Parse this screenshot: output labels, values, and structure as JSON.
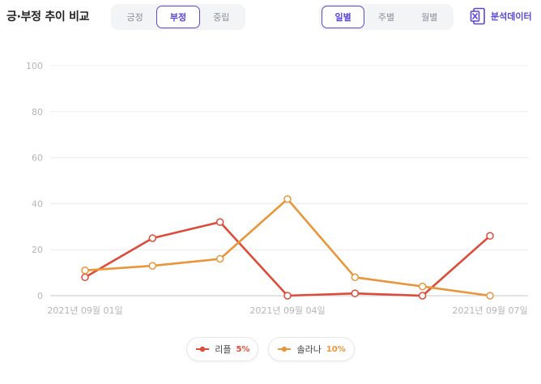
{
  "header": {
    "title": "긍·부정 추이 비교",
    "export_label": "분석데이터"
  },
  "sentiment_tabs": [
    {
      "label": "긍정",
      "active": false
    },
    {
      "label": "부정",
      "active": true
    },
    {
      "label": "중립",
      "active": false
    }
  ],
  "period_tabs": [
    {
      "label": "일별",
      "active": true
    },
    {
      "label": "주별",
      "active": false
    },
    {
      "label": "월별",
      "active": false
    }
  ],
  "icons": {
    "export": "excel-export-icon"
  },
  "colors": {
    "accent": "#5a47d6",
    "series1": "#dd4b39",
    "series2": "#e8963a"
  },
  "legend": [
    {
      "name": "리플",
      "percent": "5%",
      "color": "#dd4b39"
    },
    {
      "name": "솔라나",
      "percent": "10%",
      "color": "#e8963a"
    }
  ],
  "chart_data": {
    "type": "line",
    "x": [
      "2021-09-01",
      "2021-09-02",
      "2021-09-03",
      "2021-09-04",
      "2021-09-05",
      "2021-09-06",
      "2021-09-07"
    ],
    "x_tick_labels": [
      "2021년 09월 01일",
      "2021년 09월 04일",
      "2021년 09월 07일"
    ],
    "x_tick_positions": [
      "2021-09-01",
      "2021-09-04",
      "2021-09-07"
    ],
    "ylim": [
      0,
      100
    ],
    "yticks": [
      0,
      20,
      40,
      60,
      80,
      100
    ],
    "grid": true,
    "series": [
      {
        "name": "리플",
        "color": "#dd4b39",
        "values": [
          8,
          25,
          32,
          0,
          1,
          0,
          26
        ]
      },
      {
        "name": "솔라나",
        "color": "#e8963a",
        "values": [
          11,
          13,
          16,
          42,
          8,
          4,
          0
        ]
      }
    ]
  }
}
